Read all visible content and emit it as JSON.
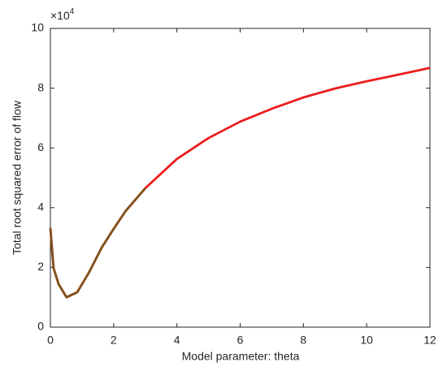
{
  "chart_data": {
    "type": "line",
    "x_label": "Model parameter: theta",
    "y_label": "Total root squared error of flow",
    "y_multiplier": {
      "base": "×10",
      "exponent": "4"
    },
    "xlim": [
      0,
      12
    ],
    "xticks": [
      0,
      2,
      4,
      6,
      8,
      10,
      12
    ],
    "ylim": [
      0,
      10
    ],
    "yticks": [
      0,
      2,
      4,
      6,
      8,
      10
    ],
    "grid": false,
    "series": [
      {
        "color": "#ee1c1c",
        "x": [
          0,
          0.1,
          0.26,
          0.51,
          0.85,
          1.23,
          1.62,
          2,
          2.38,
          3,
          4,
          5,
          6,
          7,
          8,
          9,
          10,
          11,
          12
        ],
        "values": [
          3.32,
          1.98,
          1.44,
          1.0,
          1.17,
          1.85,
          2.66,
          3.29,
          3.89,
          4.65,
          5.63,
          6.33,
          6.88,
          7.31,
          7.69,
          7.99,
          8.23,
          8.45,
          8.68
        ]
      },
      {
        "color": "#80521c",
        "x": [
          0,
          0.1,
          0.26,
          0.51,
          0.85,
          1.23,
          1.62,
          2,
          2.38,
          3
        ],
        "values": [
          3.32,
          1.98,
          1.44,
          1.0,
          1.17,
          1.85,
          2.66,
          3.29,
          3.89,
          4.65
        ]
      }
    ]
  }
}
